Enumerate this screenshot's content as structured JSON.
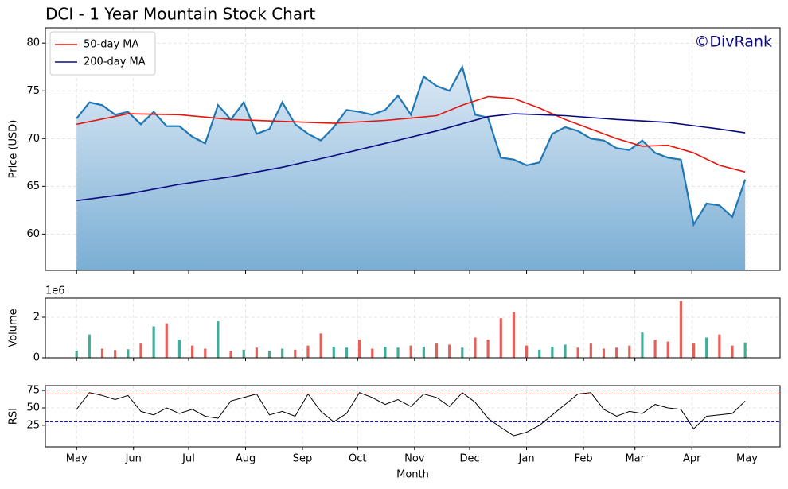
{
  "chart_data": [
    {
      "type": "line",
      "title": "DCI - 1 Year Mountain Stock Chart",
      "ylabel": "Price (USD)",
      "watermark": "©DivRank",
      "x": [
        0,
        7,
        14,
        21,
        28,
        35,
        42,
        49,
        56,
        63,
        70,
        77,
        84,
        91,
        98,
        105,
        112,
        119,
        126,
        133,
        140,
        147,
        154,
        161,
        168,
        175,
        182,
        189,
        196,
        203,
        210,
        217,
        224,
        231,
        238,
        245,
        252,
        259,
        266,
        273,
        280,
        287,
        294,
        301,
        308,
        315,
        322,
        329,
        336,
        343,
        350,
        357,
        364
      ],
      "series": [
        {
          "color": "#1f77b4",
          "fill": true,
          "values": [
            72.1,
            73.8,
            73.5,
            72.5,
            72.8,
            71.5,
            72.8,
            71.3,
            71.3,
            70.2,
            69.5,
            73.5,
            72.0,
            73.8,
            70.5,
            71.0,
            73.8,
            71.5,
            70.5,
            69.8,
            71.2,
            73.0,
            72.8,
            72.5,
            73.0,
            74.5,
            72.5,
            76.5,
            75.5,
            75.0,
            77.5,
            72.5,
            72.2,
            68.0,
            67.8,
            67.2,
            67.5,
            70.5,
            71.2,
            70.8,
            70.0,
            69.8,
            69.0,
            68.8,
            69.8,
            68.5,
            68.0,
            67.8,
            61.0,
            63.2,
            63.0,
            61.8,
            65.7
          ]
        },
        {
          "name": "50-day MA",
          "color": "#e8140c",
          "x": [
            0,
            28,
            56,
            84,
            112,
            140,
            168,
            196,
            210,
            224,
            238,
            252,
            266,
            280,
            294,
            308,
            322,
            336,
            350,
            364
          ],
          "values": [
            71.5,
            72.6,
            72.5,
            72.0,
            71.8,
            71.6,
            71.9,
            72.4,
            73.5,
            74.4,
            74.2,
            73.2,
            72.0,
            71.0,
            70.0,
            69.2,
            69.3,
            68.5,
            67.2,
            66.5
          ]
        },
        {
          "name": "200-day MA",
          "color": "#0a0a80",
          "x": [
            0,
            28,
            56,
            84,
            112,
            140,
            168,
            196,
            224,
            238,
            266,
            294,
            322,
            350,
            364
          ],
          "values": [
            63.5,
            64.2,
            65.2,
            66.0,
            67.0,
            68.2,
            69.5,
            70.8,
            72.3,
            72.6,
            72.4,
            72.0,
            71.7,
            71.0,
            70.6
          ]
        }
      ],
      "xlim": [
        -17,
        383
      ],
      "ylim": [
        56.2,
        81.6
      ],
      "yticks": [
        60,
        65,
        70,
        75,
        80
      ],
      "grid": true,
      "legend": "upper left"
    },
    {
      "type": "bar",
      "ylabel": "Volume",
      "offset_label": "1e6",
      "up_color": "#3fae9a",
      "down_color": "#e8605a",
      "values": [
        350000,
        1150000,
        450000,
        380000,
        420000,
        700000,
        1550000,
        1700000,
        900000,
        600000,
        450000,
        1800000,
        350000,
        400000,
        500000,
        350000,
        450000,
        400000,
        600000,
        1200000,
        550000,
        500000,
        900000,
        450000,
        550000,
        500000,
        600000,
        550000,
        700000,
        650000,
        500000,
        1000000,
        900000,
        1950000,
        2250000,
        600000,
        400000,
        550000,
        650000,
        500000,
        700000,
        450000,
        500000,
        600000,
        1250000,
        900000,
        800000,
        2800000,
        700000,
        1000000,
        1150000,
        600000,
        750000
      ],
      "ylim": [
        0,
        2940000
      ],
      "yticks": [
        0,
        {
          "value": 2000000,
          "label": "2"
        }
      ],
      "grid": true
    },
    {
      "type": "line",
      "ylabel": "RSI",
      "xlabel": "Month",
      "series": [
        {
          "color": "#000000",
          "values": [
            48,
            72,
            68,
            62,
            68,
            45,
            40,
            50,
            42,
            48,
            38,
            35,
            60,
            65,
            70,
            40,
            45,
            38,
            70,
            45,
            30,
            42,
            72,
            65,
            55,
            62,
            52,
            70,
            65,
            52,
            72,
            58,
            35,
            22,
            10,
            15,
            25,
            40,
            55,
            70,
            72,
            48,
            38,
            45,
            42,
            55,
            50,
            48,
            20,
            38,
            40,
            42,
            60
          ]
        }
      ],
      "hlines": [
        {
          "value": 70,
          "color": "#e8140c"
        },
        {
          "value": 30,
          "color": "#1414e0"
        }
      ],
      "ylim": [
        -6,
        82
      ],
      "yticks": [
        25,
        50,
        75
      ],
      "grid": true,
      "xticks": [
        {
          "value": 0,
          "label": "May"
        },
        {
          "value": 31,
          "label": "Jun"
        },
        {
          "value": 61,
          "label": "Jul"
        },
        {
          "value": 92,
          "label": "Aug"
        },
        {
          "value": 123,
          "label": "Sep"
        },
        {
          "value": 153,
          "label": "Oct"
        },
        {
          "value": 184,
          "label": "Nov"
        },
        {
          "value": 214,
          "label": "Dec"
        },
        {
          "value": 245,
          "label": "Jan"
        },
        {
          "value": 276,
          "label": "Feb"
        },
        {
          "value": 304,
          "label": "Mar"
        },
        {
          "value": 335,
          "label": "Apr"
        },
        {
          "value": 365,
          "label": "May"
        }
      ]
    }
  ]
}
